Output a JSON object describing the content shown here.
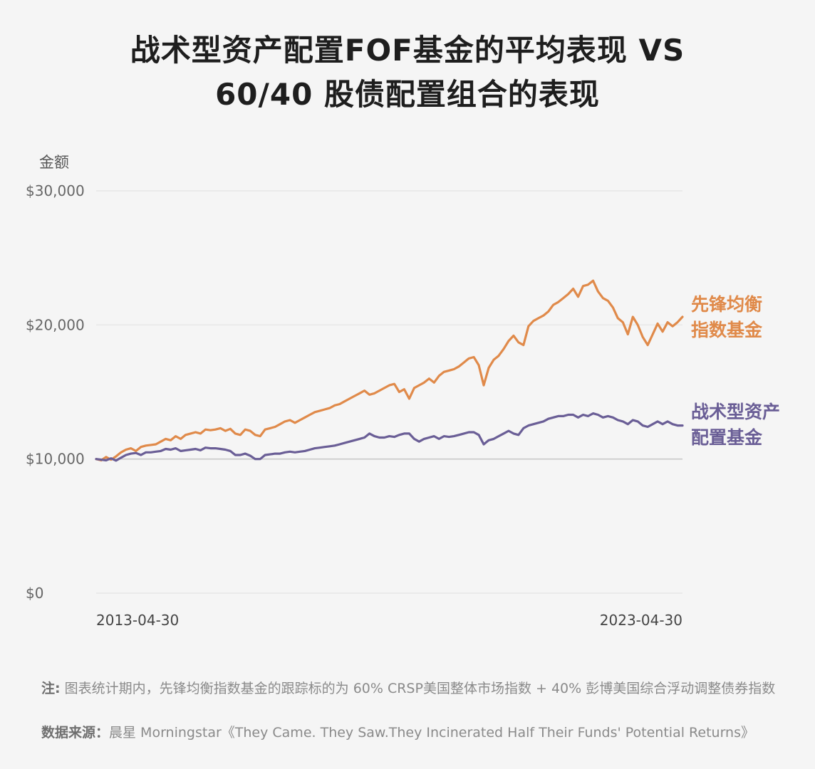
{
  "title": {
    "line1": "战术型资产配置FOF基金的平均表现 VS",
    "line2": "60/40 股债配置组合的表现"
  },
  "footnote": {
    "label": "注:",
    "text": " 图表统计期内，先锋均衡指数基金的跟踪标的为 60% CRSP美国整体市场指数 + 40% 彭博美国综合浮动调整债券指数"
  },
  "source": {
    "label": "数据来源：",
    "text": "晨星 Morningstar《They Came. They Saw.They Incinerated Half Their Funds' Potential Returns》"
  },
  "colors": {
    "background": "#f5f5f5",
    "vanguard": "#e08a4a",
    "tactical": "#6a5e96",
    "grid": "#e3e3e3",
    "baseline": "#c9c9c9",
    "axis_text": "#666666"
  },
  "chart_data": {
    "type": "line",
    "ylabel": "金额",
    "ylim": [
      0,
      30000
    ],
    "yticks": [
      0,
      10000,
      20000,
      30000
    ],
    "ytick_labels": [
      "$0",
      "$10,000",
      "$20,000",
      "$30,000"
    ],
    "xlim": [
      "2013-04-30",
      "2023-04-30"
    ],
    "xtick_labels": [
      "2013-04-30",
      "2023-04-30"
    ],
    "grid": true,
    "legend": "inline-right",
    "series": [
      {
        "name_line1": "先锋均衡",
        "name_line2": "指数基金",
        "color": "#e08a4a",
        "values": [
          10000,
          9900,
          10150,
          9950,
          10200,
          10500,
          10700,
          10800,
          10600,
          10900,
          11000,
          11050,
          11100,
          11300,
          11500,
          11400,
          11700,
          11500,
          11800,
          11900,
          12000,
          11900,
          12200,
          12150,
          12200,
          12300,
          12100,
          12250,
          11900,
          11800,
          12200,
          12100,
          11800,
          11700,
          12200,
          12300,
          12400,
          12600,
          12800,
          12900,
          12700,
          12900,
          13100,
          13300,
          13500,
          13600,
          13700,
          13800,
          14000,
          14100,
          14300,
          14500,
          14700,
          14900,
          15100,
          14800,
          14900,
          15100,
          15300,
          15500,
          15600,
          15000,
          15200,
          14500,
          15300,
          15500,
          15700,
          16000,
          15700,
          16200,
          16500,
          16600,
          16700,
          16900,
          17200,
          17500,
          17600,
          17000,
          15500,
          16800,
          17400,
          17700,
          18200,
          18800,
          19200,
          18700,
          18500,
          19900,
          20300,
          20500,
          20700,
          21000,
          21500,
          21700,
          22000,
          22300,
          22700,
          22100,
          22900,
          23000,
          23300,
          22500,
          22000,
          21800,
          21300,
          20500,
          20200,
          19300,
          20600,
          20000,
          19100,
          18500,
          19300,
          20100,
          19500,
          20200,
          19900,
          20200,
          20600
        ]
      },
      {
        "name_line1": "战术型资产",
        "name_line2": "配置基金",
        "color": "#6a5e96",
        "values": [
          10000,
          9950,
          9900,
          10050,
          9880,
          10100,
          10300,
          10400,
          10450,
          10300,
          10500,
          10500,
          10550,
          10600,
          10750,
          10700,
          10800,
          10600,
          10650,
          10700,
          10750,
          10650,
          10850,
          10800,
          10800,
          10750,
          10700,
          10600,
          10300,
          10300,
          10400,
          10250,
          10000,
          10000,
          10300,
          10350,
          10400,
          10400,
          10500,
          10550,
          10500,
          10550,
          10600,
          10700,
          10800,
          10850,
          10900,
          10950,
          11000,
          11100,
          11200,
          11300,
          11400,
          11500,
          11600,
          11900,
          11700,
          11600,
          11600,
          11700,
          11650,
          11800,
          11900,
          11900,
          11500,
          11300,
          11500,
          11600,
          11700,
          11500,
          11700,
          11650,
          11700,
          11800,
          11900,
          12000,
          12000,
          11800,
          11100,
          11400,
          11500,
          11700,
          11900,
          12100,
          11900,
          11800,
          12300,
          12500,
          12600,
          12700,
          12800,
          13000,
          13100,
          13200,
          13200,
          13300,
          13300,
          13100,
          13300,
          13200,
          13400,
          13300,
          13100,
          13200,
          13100,
          12900,
          12800,
          12600,
          12900,
          12800,
          12500,
          12400,
          12600,
          12800,
          12600,
          12800,
          12600,
          12500,
          12500
        ]
      }
    ]
  }
}
